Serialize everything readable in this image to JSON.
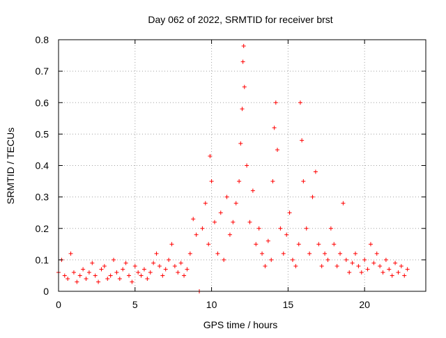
{
  "chart_data": {
    "type": "scatter",
    "title": "Day 062 of 2022, SRMTID for receiver brst",
    "xlabel": "GPS time / hours",
    "ylabel": "SRMTID / TECUs",
    "xlim": [
      0,
      24
    ],
    "ylim": [
      0,
      0.8
    ],
    "grid": true,
    "marker": "plus",
    "color": "#ff0000",
    "xticks": [
      0,
      5,
      10,
      15,
      20
    ],
    "xtick_labels": [
      "0",
      "5",
      "10",
      "15",
      "20"
    ],
    "yticks": [
      0,
      0.1,
      0.2,
      0.3,
      0.4,
      0.5,
      0.6,
      0.7,
      0.8
    ],
    "ytick_labels": [
      "0",
      "0.1",
      "0.2",
      "0.3",
      "0.4",
      "0.5",
      "0.6",
      "0.7",
      "0.8"
    ],
    "series": [
      {
        "name": "SRMTID",
        "points": [
          [
            0.0,
            0.06
          ],
          [
            0.2,
            0.1
          ],
          [
            0.4,
            0.05
          ],
          [
            0.6,
            0.04
          ],
          [
            0.8,
            0.12
          ],
          [
            1.0,
            0.06
          ],
          [
            1.2,
            0.03
          ],
          [
            1.4,
            0.05
          ],
          [
            1.6,
            0.07
          ],
          [
            1.8,
            0.04
          ],
          [
            2.0,
            0.06
          ],
          [
            2.2,
            0.09
          ],
          [
            2.4,
            0.05
          ],
          [
            2.6,
            0.03
          ],
          [
            2.8,
            0.07
          ],
          [
            3.0,
            0.08
          ],
          [
            3.2,
            0.04
          ],
          [
            3.4,
            0.05
          ],
          [
            3.6,
            0.1
          ],
          [
            3.8,
            0.06
          ],
          [
            4.0,
            0.04
          ],
          [
            4.2,
            0.07
          ],
          [
            4.4,
            0.09
          ],
          [
            4.6,
            0.05
          ],
          [
            4.8,
            0.03
          ],
          [
            5.0,
            0.08
          ],
          [
            5.2,
            0.06
          ],
          [
            5.4,
            0.05
          ],
          [
            5.6,
            0.07
          ],
          [
            5.8,
            0.04
          ],
          [
            6.0,
            0.06
          ],
          [
            6.2,
            0.09
          ],
          [
            6.4,
            0.12
          ],
          [
            6.6,
            0.08
          ],
          [
            6.8,
            0.05
          ],
          [
            7.0,
            0.07
          ],
          [
            7.2,
            0.1
          ],
          [
            7.4,
            0.15
          ],
          [
            7.6,
            0.08
          ],
          [
            7.8,
            0.06
          ],
          [
            8.0,
            0.09
          ],
          [
            8.2,
            0.05
          ],
          [
            8.4,
            0.07
          ],
          [
            8.6,
            0.12
          ],
          [
            8.8,
            0.23
          ],
          [
            9.0,
            0.18
          ],
          [
            9.2,
            0.0
          ],
          [
            9.4,
            0.2
          ],
          [
            9.6,
            0.28
          ],
          [
            9.8,
            0.15
          ],
          [
            9.9,
            0.43
          ],
          [
            10.0,
            0.35
          ],
          [
            10.2,
            0.22
          ],
          [
            10.4,
            0.12
          ],
          [
            10.6,
            0.25
          ],
          [
            10.8,
            0.1
          ],
          [
            11.0,
            0.3
          ],
          [
            11.2,
            0.18
          ],
          [
            11.4,
            0.22
          ],
          [
            11.6,
            0.28
          ],
          [
            11.8,
            0.35
          ],
          [
            11.9,
            0.47
          ],
          [
            12.0,
            0.58
          ],
          [
            12.05,
            0.73
          ],
          [
            12.1,
            0.78
          ],
          [
            12.15,
            0.65
          ],
          [
            12.3,
            0.4
          ],
          [
            12.5,
            0.22
          ],
          [
            12.7,
            0.32
          ],
          [
            12.9,
            0.15
          ],
          [
            13.1,
            0.2
          ],
          [
            13.3,
            0.12
          ],
          [
            13.5,
            0.08
          ],
          [
            13.7,
            0.16
          ],
          [
            13.9,
            0.1
          ],
          [
            14.0,
            0.35
          ],
          [
            14.1,
            0.52
          ],
          [
            14.2,
            0.6
          ],
          [
            14.3,
            0.45
          ],
          [
            14.5,
            0.2
          ],
          [
            14.7,
            0.12
          ],
          [
            14.9,
            0.18
          ],
          [
            15.1,
            0.25
          ],
          [
            15.3,
            0.1
          ],
          [
            15.5,
            0.08
          ],
          [
            15.7,
            0.15
          ],
          [
            15.8,
            0.6
          ],
          [
            15.9,
            0.48
          ],
          [
            16.0,
            0.35
          ],
          [
            16.2,
            0.2
          ],
          [
            16.4,
            0.12
          ],
          [
            16.6,
            0.3
          ],
          [
            16.8,
            0.38
          ],
          [
            17.0,
            0.15
          ],
          [
            17.2,
            0.08
          ],
          [
            17.4,
            0.12
          ],
          [
            17.6,
            0.1
          ],
          [
            17.8,
            0.2
          ],
          [
            18.0,
            0.15
          ],
          [
            18.2,
            0.08
          ],
          [
            18.4,
            0.12
          ],
          [
            18.6,
            0.28
          ],
          [
            18.8,
            0.1
          ],
          [
            19.0,
            0.06
          ],
          [
            19.2,
            0.09
          ],
          [
            19.4,
            0.12
          ],
          [
            19.6,
            0.08
          ],
          [
            19.8,
            0.06
          ],
          [
            20.0,
            0.1
          ],
          [
            20.2,
            0.07
          ],
          [
            20.4,
            0.15
          ],
          [
            20.6,
            0.09
          ],
          [
            20.8,
            0.12
          ],
          [
            21.0,
            0.08
          ],
          [
            21.2,
            0.06
          ],
          [
            21.4,
            0.1
          ],
          [
            21.6,
            0.07
          ],
          [
            21.8,
            0.05
          ],
          [
            22.0,
            0.09
          ],
          [
            22.2,
            0.06
          ],
          [
            22.4,
            0.08
          ],
          [
            22.6,
            0.05
          ],
          [
            22.8,
            0.07
          ]
        ]
      }
    ]
  }
}
